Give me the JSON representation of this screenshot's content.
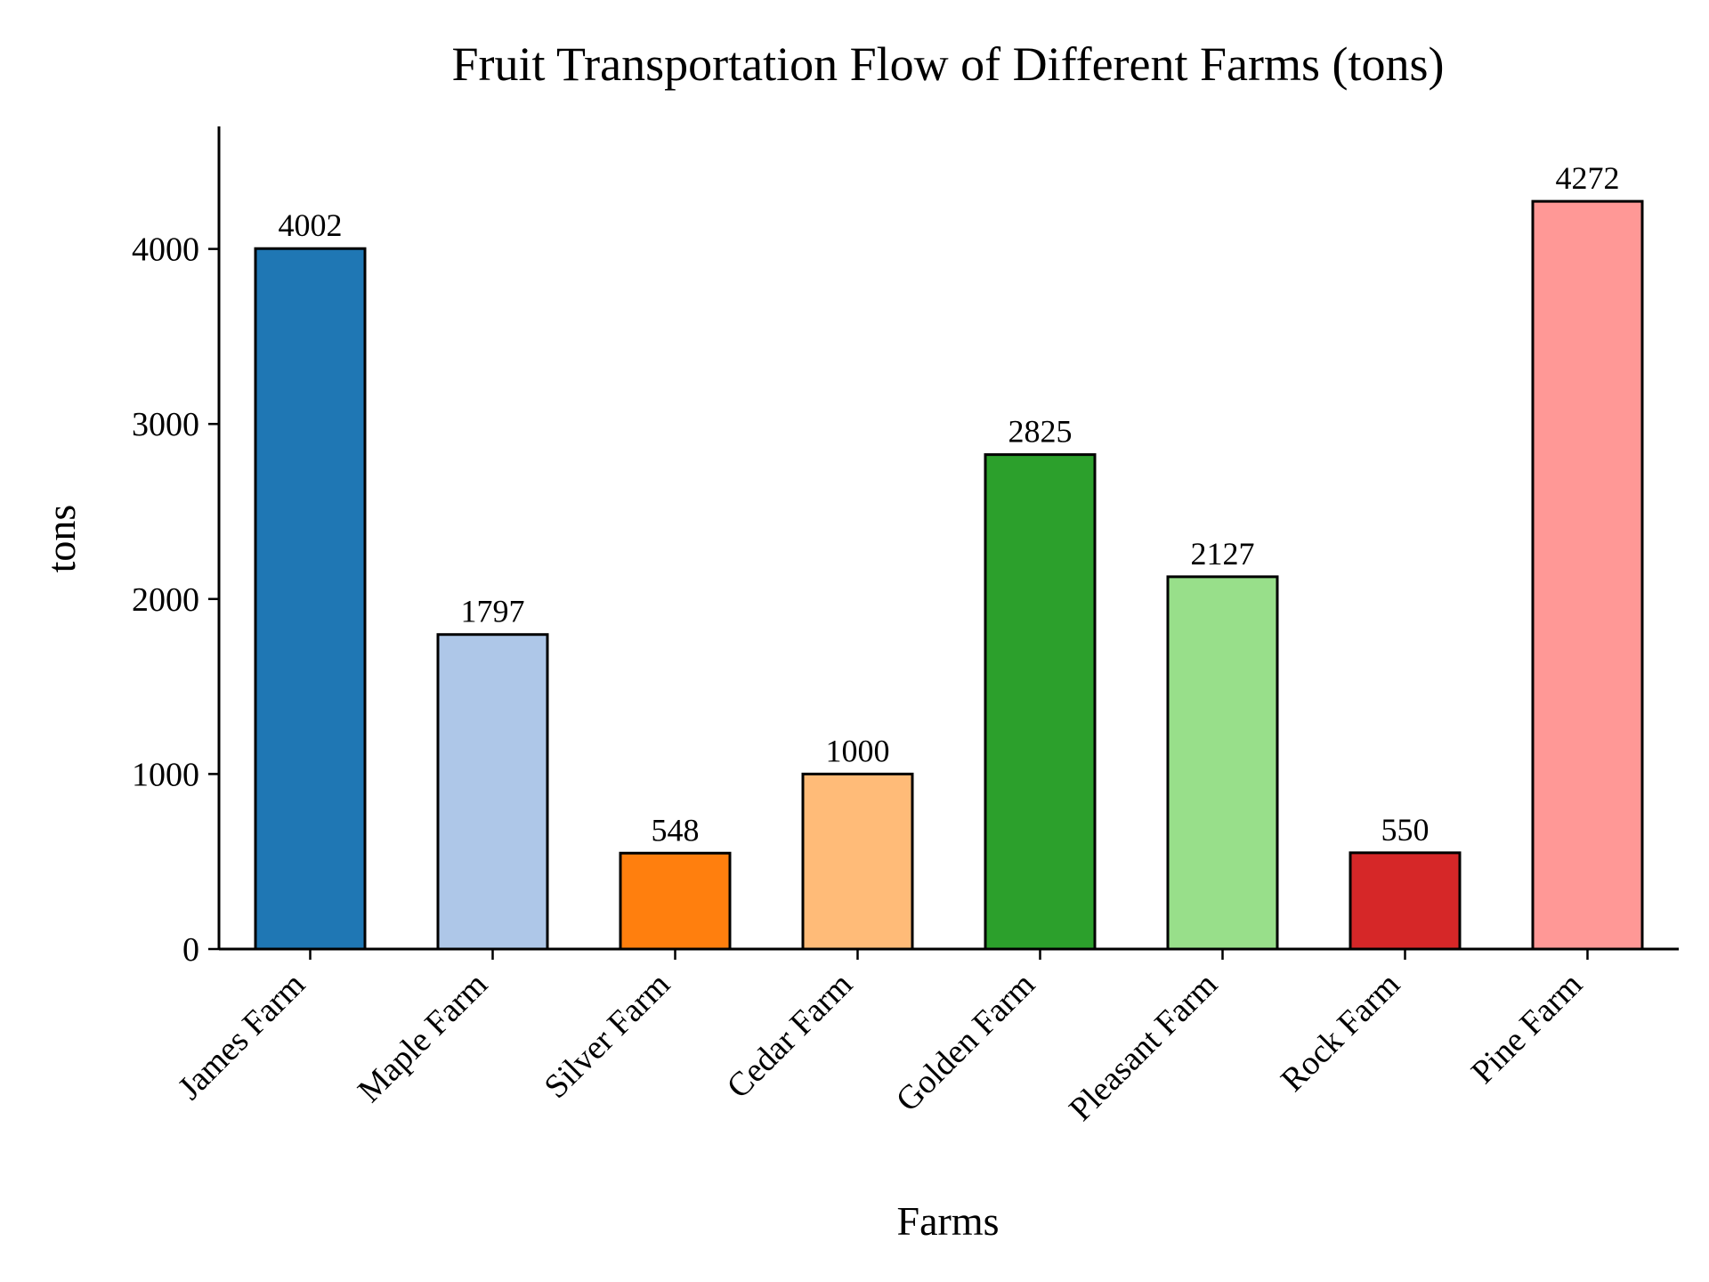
{
  "chart_data": {
    "type": "bar",
    "title": "Fruit Transportation Flow of Different Farms (tons)",
    "xlabel": "Farms",
    "ylabel": "tons",
    "categories": [
      "James Farm",
      "Maple Farm",
      "Silver Farm",
      "Cedar Farm",
      "Golden Farm",
      "Pleasant Farm",
      "Rock Farm",
      "Pine Farm"
    ],
    "values": [
      4002,
      1797,
      548,
      1000,
      2825,
      2127,
      550,
      4272
    ],
    "colors": [
      "#1f77b4",
      "#aec7e8",
      "#ff7f0e",
      "#ffbb78",
      "#2ca02c",
      "#98df8a",
      "#d62728",
      "#ff9896"
    ],
    "edge_color": "#000000",
    "ylim": [
      0,
      4700
    ],
    "yticks": [
      0,
      1000,
      2000,
      3000,
      4000
    ],
    "grid": false,
    "legend": "none",
    "data_labels": true
  }
}
